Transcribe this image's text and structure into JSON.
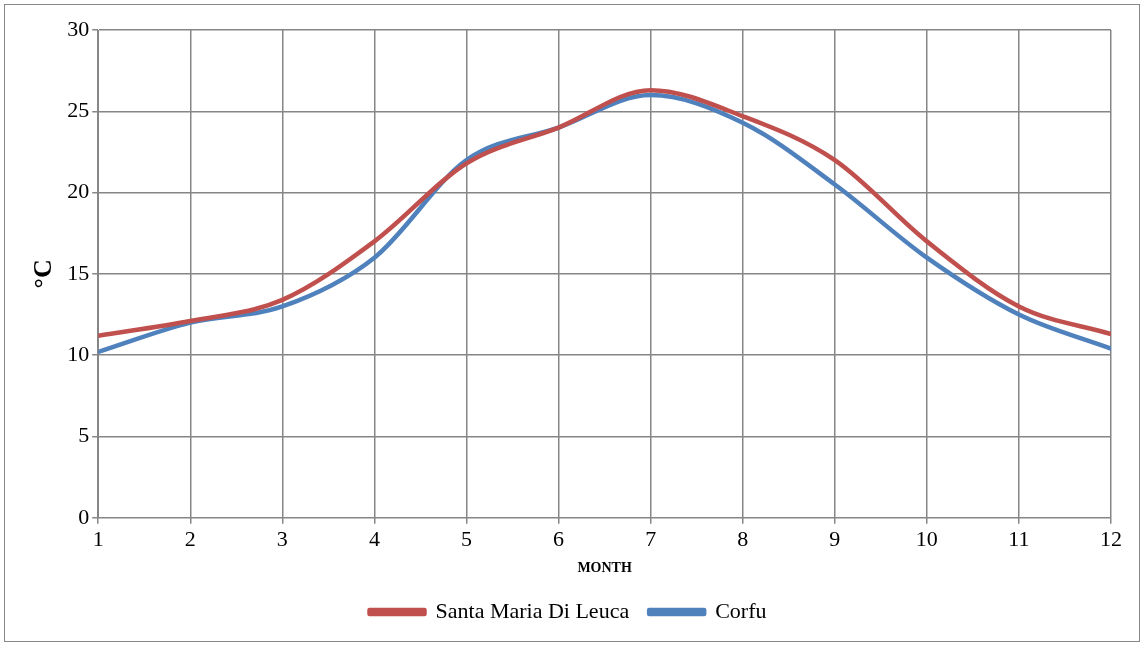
{
  "chart_data": {
    "type": "line",
    "xlabel": "MONTH",
    "ylabel": "°C",
    "x": [
      1,
      2,
      3,
      4,
      5,
      6,
      7,
      8,
      9,
      10,
      11,
      12
    ],
    "series": [
      {
        "name": "Santa Maria Di Leuca",
        "color": "#c0504d",
        "values": [
          11.2,
          12.1,
          13.4,
          17,
          21.8,
          24,
          26.3,
          24.7,
          22,
          17,
          13,
          11.3
        ]
      },
      {
        "name": "Corfu",
        "color": "#4f81bd",
        "values": [
          10.2,
          12,
          13,
          16,
          22,
          24,
          26,
          24.3,
          20.5,
          16,
          12.5,
          10.4
        ]
      }
    ],
    "xlim": [
      1,
      12
    ],
    "xticks": [
      1,
      2,
      3,
      4,
      5,
      6,
      7,
      8,
      9,
      10,
      11,
      12
    ],
    "ylim": [
      0,
      30
    ],
    "yticks": [
      0,
      5,
      10,
      15,
      20,
      25,
      30
    ],
    "grid": true,
    "legend": "bottom"
  }
}
